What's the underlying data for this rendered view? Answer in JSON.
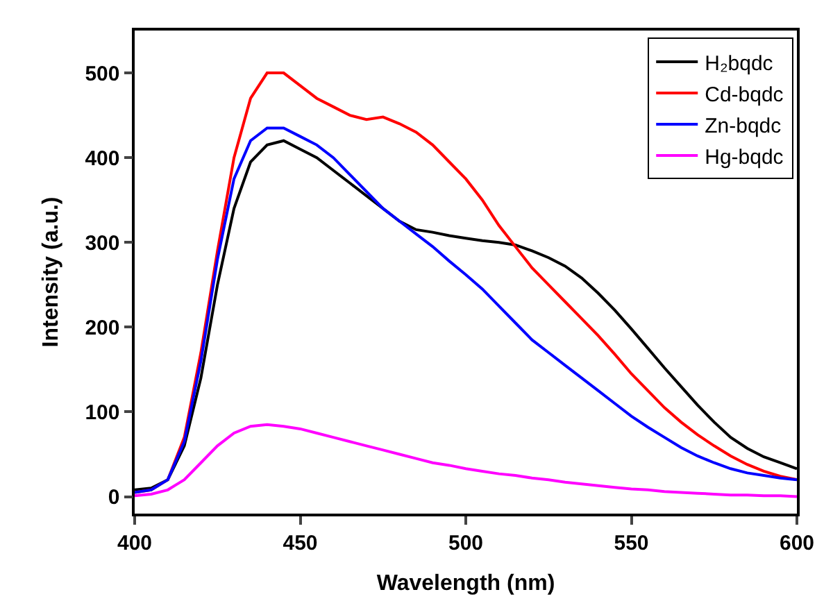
{
  "chart_data": {
    "type": "line",
    "xlabel": "Wavelength (nm)",
    "ylabel": "Intensity (a.u.)",
    "xlim": [
      400,
      600
    ],
    "xticks": [
      400,
      450,
      500,
      550,
      600
    ],
    "ylim": [
      -20,
      550
    ],
    "yticks": [
      0,
      100,
      200,
      300,
      400,
      500
    ],
    "legend": "top right",
    "marker": "none",
    "line_style": "solid",
    "x": [
      400,
      405,
      410,
      415,
      420,
      425,
      430,
      435,
      440,
      445,
      450,
      455,
      460,
      465,
      470,
      475,
      480,
      485,
      490,
      495,
      500,
      505,
      510,
      515,
      520,
      525,
      530,
      535,
      540,
      545,
      550,
      555,
      560,
      565,
      570,
      575,
      580,
      585,
      590,
      595,
      600
    ],
    "series": [
      {
        "name": "H₂bqdc",
        "color": "#000000",
        "values": [
          8,
          10,
          20,
          60,
          140,
          250,
          340,
          395,
          415,
          420,
          410,
          400,
          385,
          370,
          355,
          340,
          325,
          315,
          312,
          308,
          305,
          302,
          300,
          297,
          290,
          282,
          272,
          258,
          240,
          220,
          198,
          175,
          152,
          130,
          108,
          88,
          70,
          57,
          47,
          40,
          33
        ]
      },
      {
        "name": "Cd-bqdc",
        "color": "#ff0000",
        "values": [
          5,
          8,
          20,
          70,
          170,
          290,
          400,
          470,
          500,
          500,
          485,
          470,
          460,
          450,
          445,
          448,
          440,
          430,
          415,
          395,
          375,
          350,
          320,
          295,
          270,
          250,
          230,
          210,
          190,
          168,
          145,
          125,
          105,
          88,
          73,
          60,
          48,
          38,
          30,
          24,
          20
        ]
      },
      {
        "name": "Zn-bqdc",
        "color": "#0000ff",
        "values": [
          5,
          8,
          20,
          65,
          160,
          280,
          375,
          420,
          435,
          435,
          425,
          415,
          400,
          380,
          360,
          340,
          325,
          310,
          295,
          278,
          262,
          245,
          225,
          205,
          185,
          170,
          155,
          140,
          125,
          110,
          95,
          82,
          70,
          58,
          48,
          40,
          33,
          28,
          25,
          22,
          20
        ]
      },
      {
        "name": "Hg-bqdc",
        "color": "#ff00ff",
        "values": [
          1,
          3,
          8,
          20,
          40,
          60,
          75,
          83,
          85,
          83,
          80,
          75,
          70,
          65,
          60,
          55,
          50,
          45,
          40,
          37,
          33,
          30,
          27,
          25,
          22,
          20,
          17,
          15,
          13,
          11,
          9,
          8,
          6,
          5,
          4,
          3,
          2,
          2,
          1,
          1,
          0
        ]
      }
    ]
  }
}
